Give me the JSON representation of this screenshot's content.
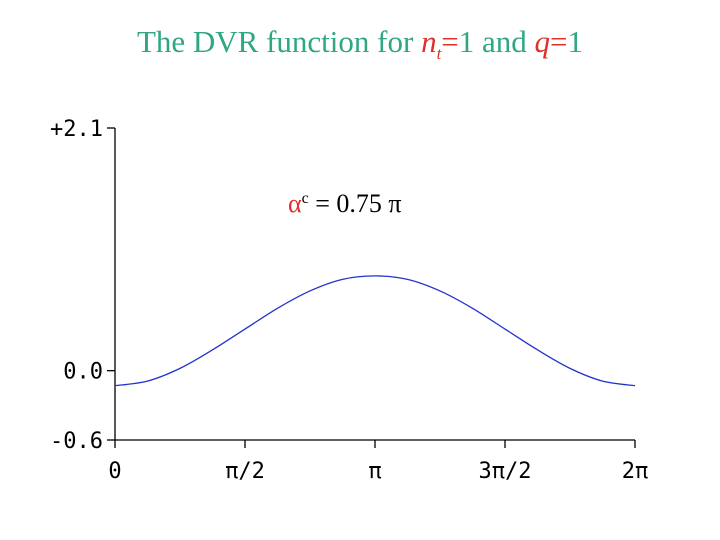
{
  "title": {
    "prefix": "The DVR function for ",
    "var1": "n",
    "var1_sub": "t",
    "eq1": "=",
    "val1": "1 and ",
    "var2": "q",
    "eq2": "=",
    "val2": "1"
  },
  "colors": {
    "title": "#2fa784",
    "variable": "#e0302a",
    "curve": "#2233cc",
    "axis": "#000000"
  },
  "chart_data": {
    "type": "line",
    "title": "The DVR function for nt=1 and q=1",
    "xlabel": "",
    "ylabel": "",
    "xlim": [
      0,
      6.2832
    ],
    "ylim": [
      -0.6,
      2.1
    ],
    "x_ticks": [
      {
        "value": 0,
        "label": "0"
      },
      {
        "value": 1.5708,
        "label": "π/2"
      },
      {
        "value": 3.1416,
        "label": "π"
      },
      {
        "value": 4.7124,
        "label": "3π/2"
      },
      {
        "value": 6.2832,
        "label": "2π"
      }
    ],
    "y_ticks": [
      {
        "value": 2.1,
        "label": "+2.1"
      },
      {
        "value": 0.0,
        "label": "0.0"
      },
      {
        "value": -0.6,
        "label": "-0.6"
      }
    ],
    "annotation": {
      "symbol": "α",
      "superscript": "c",
      "text": " = 0.75 π"
    },
    "grid": false,
    "series": [
      {
        "x": [
          0,
          0.3927,
          0.7854,
          1.1781,
          1.5708,
          1.9635,
          2.3562,
          2.7489,
          3.1416,
          3.5343,
          3.927,
          4.3197,
          4.7124,
          5.1051,
          5.4978,
          5.8905,
          6.2832
        ],
        "y": [
          -0.13,
          -0.09,
          0.02,
          0.18,
          0.36,
          0.54,
          0.69,
          0.79,
          0.82,
          0.79,
          0.69,
          0.54,
          0.36,
          0.18,
          0.02,
          -0.09,
          -0.13
        ]
      }
    ]
  }
}
